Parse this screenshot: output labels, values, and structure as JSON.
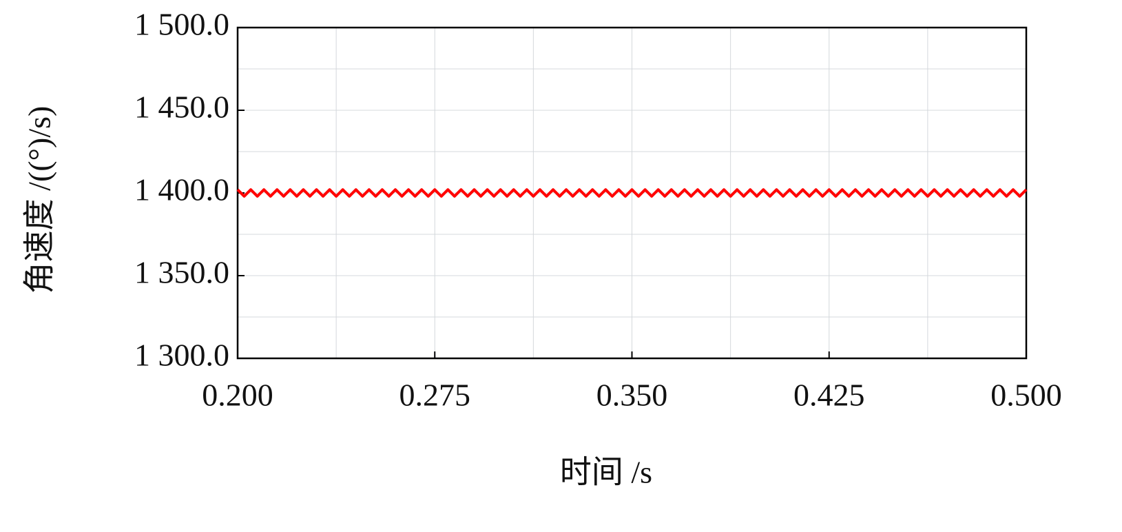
{
  "chart_data": {
    "type": "line",
    "x_label": "时间 /s",
    "y_label": "角速度 /((°)/s)",
    "xlim": [
      0.2,
      0.5
    ],
    "ylim": [
      1300,
      1500
    ],
    "xticks": [
      {
        "value": 0.2,
        "label": "0.200"
      },
      {
        "value": 0.275,
        "label": "0.275"
      },
      {
        "value": 0.35,
        "label": "0.350"
      },
      {
        "value": 0.425,
        "label": "0.425"
      },
      {
        "value": 0.5,
        "label": "0.500"
      }
    ],
    "yticks": [
      {
        "value": 1300,
        "label": "1 300.0"
      },
      {
        "value": 1350,
        "label": "1 350.0"
      },
      {
        "value": 1400,
        "label": "1 400.0"
      },
      {
        "value": 1450,
        "label": "1 450.0"
      },
      {
        "value": 1500,
        "label": "1 500.0"
      }
    ],
    "minor_xticks": [
      0.2375,
      0.3125,
      0.3875,
      0.4625
    ],
    "minor_yticks": [
      1325,
      1375,
      1425,
      1475
    ],
    "grid": true,
    "series": [
      {
        "color": "#ff0000",
        "x": [
          0.2,
          0.2025,
          0.205,
          0.2075,
          0.21,
          0.2125,
          0.215,
          0.2175,
          0.22,
          0.2225,
          0.225,
          0.2275,
          0.23,
          0.2325,
          0.235,
          0.2375,
          0.24,
          0.2425,
          0.245,
          0.2475,
          0.25,
          0.2525,
          0.255,
          0.2575,
          0.26,
          0.2625,
          0.265,
          0.2675,
          0.27,
          0.2725,
          0.275,
          0.2775,
          0.28,
          0.2825,
          0.285,
          0.2875,
          0.29,
          0.2925,
          0.295,
          0.2975,
          0.3,
          0.3025,
          0.305,
          0.3075,
          0.31,
          0.3125,
          0.315,
          0.3175,
          0.32,
          0.3225,
          0.325,
          0.3275,
          0.33,
          0.3325,
          0.335,
          0.3375,
          0.34,
          0.3425,
          0.345,
          0.3475,
          0.35,
          0.3525,
          0.355,
          0.3575,
          0.36,
          0.3625,
          0.365,
          0.3675,
          0.37,
          0.3725,
          0.375,
          0.3775,
          0.38,
          0.3825,
          0.385,
          0.3875,
          0.39,
          0.3925,
          0.395,
          0.3975,
          0.4,
          0.4025,
          0.405,
          0.4075,
          0.41,
          0.4125,
          0.415,
          0.4175,
          0.42,
          0.4225,
          0.425,
          0.4275,
          0.43,
          0.4325,
          0.435,
          0.4375,
          0.44,
          0.4425,
          0.445,
          0.4475,
          0.45,
          0.4525,
          0.455,
          0.4575,
          0.46,
          0.4625,
          0.465,
          0.4675,
          0.47,
          0.4725,
          0.475,
          0.4775,
          0.48,
          0.4825,
          0.485,
          0.4875,
          0.49,
          0.4925,
          0.495,
          0.4975,
          0.5
        ],
        "values": [
          1402,
          1398,
          1402,
          1398,
          1402,
          1398,
          1402,
          1398,
          1402,
          1398,
          1402,
          1398,
          1402,
          1398,
          1402,
          1398,
          1402,
          1398,
          1402,
          1398,
          1402,
          1398,
          1402,
          1398,
          1402,
          1398,
          1402,
          1398,
          1402,
          1398,
          1402,
          1398,
          1402,
          1398,
          1402,
          1398,
          1402,
          1398,
          1402,
          1398,
          1402,
          1398,
          1402,
          1398,
          1402,
          1398,
          1402,
          1398,
          1402,
          1398,
          1402,
          1398,
          1402,
          1398,
          1402,
          1398,
          1402,
          1398,
          1402,
          1398,
          1402,
          1398,
          1402,
          1398,
          1402,
          1398,
          1402,
          1398,
          1402,
          1398,
          1402,
          1398,
          1402,
          1398,
          1402,
          1398,
          1402,
          1398,
          1402,
          1398,
          1402,
          1398,
          1402,
          1398,
          1402,
          1398,
          1402,
          1398,
          1402,
          1398,
          1402,
          1398,
          1402,
          1398,
          1402,
          1398,
          1402,
          1398,
          1402,
          1398,
          1402,
          1398,
          1402,
          1398,
          1402,
          1398,
          1402,
          1398,
          1402,
          1398,
          1402,
          1398,
          1402,
          1398,
          1402,
          1398,
          1402,
          1398,
          1402,
          1398,
          1402
        ]
      }
    ]
  }
}
